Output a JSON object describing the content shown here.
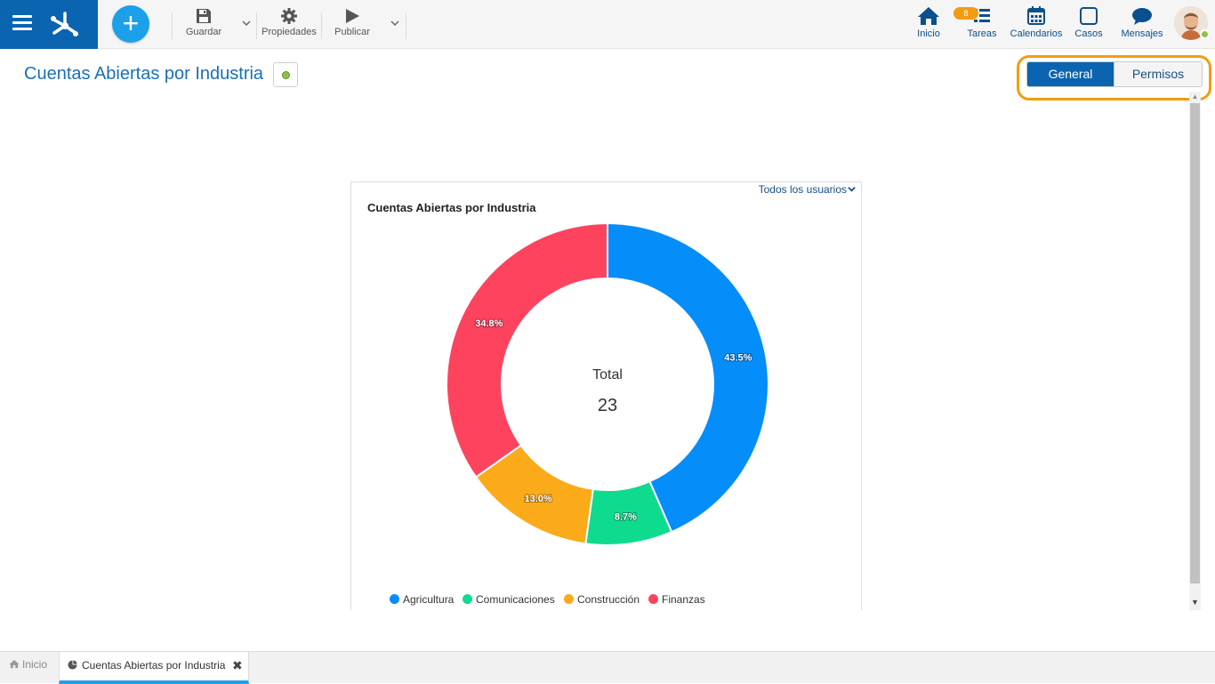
{
  "toolbar": {
    "save_label": "Guardar",
    "properties_label": "Propiedades",
    "publish_label": "Publicar"
  },
  "nav": {
    "home_label": "Inicio",
    "tasks_label": "Tareas",
    "tasks_badge": "8",
    "calendars_label": "Calendarios",
    "cases_label": "Casos",
    "messages_label": "Mensajes"
  },
  "page": {
    "title": "Cuentas Abiertas por Industria",
    "status_color": "#8bc34a"
  },
  "tabs": {
    "general": "General",
    "permissions": "Permisos",
    "active": "General"
  },
  "card": {
    "users_filter": "Todos los usuarios"
  },
  "chart_data": {
    "type": "pie",
    "title": "Cuentas Abiertas por Industria",
    "center_label": "Total",
    "center_value": "23",
    "legend_position": "bottom",
    "categories": [
      "Agricultura",
      "Comunicaciones",
      "Construcción",
      "Finanzas"
    ],
    "values": [
      10,
      2,
      3,
      8
    ],
    "percent_labels": [
      "43.5%",
      "8.7%",
      "13.0%",
      "34.8%"
    ],
    "colors": [
      "#058dfa",
      "#0fdb8f",
      "#fbaa19",
      "#fe435f"
    ]
  },
  "bottom_tabs": {
    "home_label": "Inicio",
    "active_label": "Cuentas Abiertas por Industria",
    "close_glyph": "✖"
  }
}
